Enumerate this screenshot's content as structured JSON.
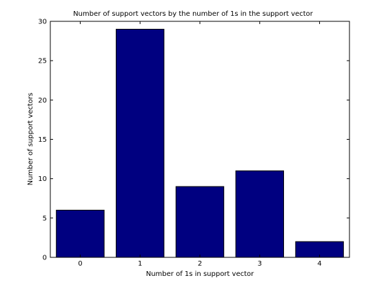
{
  "chart_data": {
    "type": "bar",
    "title": "Number of support vectors by the number of 1s in the support vector",
    "xlabel": "Number of 1s in support vector",
    "ylabel": "Number of support vectors",
    "categories": [
      "0",
      "1",
      "2",
      "3",
      "4"
    ],
    "values": [
      6,
      29,
      9,
      11,
      2
    ],
    "ylim": [
      0,
      30
    ],
    "yticks": [
      0,
      5,
      10,
      15,
      20,
      25,
      30
    ],
    "grid": false,
    "bar_color": "#000080",
    "edge_color": "#000000"
  }
}
